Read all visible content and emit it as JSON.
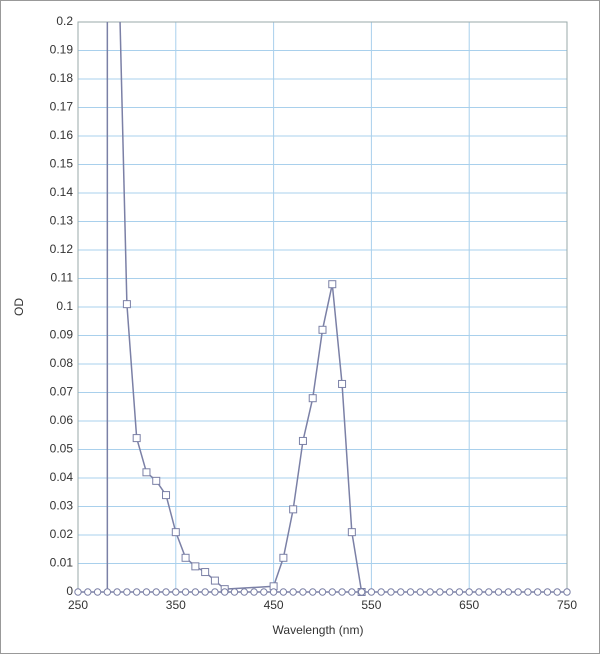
{
  "chart_data": {
    "type": "line",
    "x_label": "Wavelength (nm)",
    "y_label": "OD",
    "xlim": [
      250,
      750
    ],
    "xticks": [
      250,
      350,
      450,
      550,
      650,
      750
    ],
    "ylim": [
      0,
      0.2
    ],
    "yticks": [
      0,
      0.01,
      0.02,
      0.03,
      0.04,
      0.05,
      0.06,
      0.07,
      0.08,
      0.09,
      0.1,
      0.11,
      0.12,
      0.13,
      0.14,
      0.15,
      0.16,
      0.17,
      0.18,
      0.19,
      0.2
    ],
    "grid": true,
    "series": [
      {
        "color": "#7b80a6",
        "marker": "none",
        "x": [
          280,
          280
        ],
        "values": [
          0,
          0.2
        ]
      },
      {
        "color": "#7b80a6",
        "marker": "none",
        "x": [
          293,
          300
        ],
        "values": [
          0.2,
          0.101
        ]
      },
      {
        "color": "#7b80a6",
        "marker": "square",
        "x": [
          300,
          310,
          320,
          330,
          340,
          350,
          360,
          370,
          380,
          390,
          400,
          450,
          460,
          470,
          480,
          490,
          500,
          510,
          520,
          530,
          540
        ],
        "values": [
          0.101,
          0.054,
          0.042,
          0.039,
          0.034,
          0.021,
          0.012,
          0.009,
          0.007,
          0.004,
          0.001,
          0.002,
          0.012,
          0.029,
          0.053,
          0.068,
          0.092,
          0.108,
          0.073,
          0.021,
          0
        ]
      },
      {
        "color": "#7b80a6",
        "marker": "circle",
        "x": [
          250,
          260,
          270,
          280,
          290,
          300,
          310,
          320,
          330,
          340,
          350,
          360,
          370,
          380,
          390,
          400,
          410,
          420,
          430,
          440,
          450,
          460,
          470,
          480,
          490,
          500,
          510,
          520,
          530,
          540,
          550,
          560,
          570,
          580,
          590,
          600,
          610,
          620,
          630,
          640,
          650,
          660,
          670,
          680,
          690,
          700,
          710,
          720,
          730,
          740,
          750
        ],
        "values": [
          0,
          0,
          0,
          0,
          0,
          0,
          0,
          0,
          0,
          0,
          0,
          0,
          0,
          0,
          0,
          0,
          0,
          0,
          0,
          0,
          0,
          0,
          0,
          0,
          0,
          0,
          0,
          0,
          0,
          0,
          0,
          0,
          0,
          0,
          0,
          0,
          0,
          0,
          0,
          0,
          0,
          0,
          0,
          0,
          0,
          0,
          0,
          0,
          0,
          0,
          0
        ]
      }
    ]
  }
}
